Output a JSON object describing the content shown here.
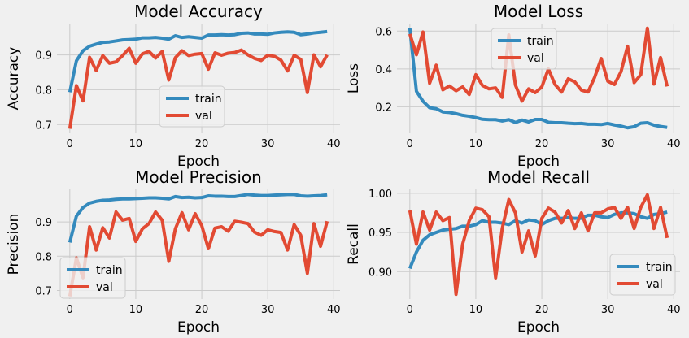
{
  "chart_data": [
    {
      "type": "line",
      "title": "Model Accuracy",
      "xlabel": "Epoch",
      "ylabel": "Accuracy",
      "xlim": [
        -1.95,
        40.95
      ],
      "ylim": [
        0.675,
        0.99
      ],
      "xticks": [
        0,
        10,
        20,
        30,
        40
      ],
      "yticks": [
        0.7,
        0.8,
        0.9
      ],
      "ytick_labels": [
        "0.7",
        "0.8",
        "0.9"
      ],
      "legend": "center-bottom",
      "grid": true,
      "x": [
        0,
        1,
        2,
        3,
        4,
        5,
        6,
        7,
        8,
        9,
        10,
        11,
        12,
        13,
        14,
        15,
        16,
        17,
        18,
        19,
        20,
        21,
        22,
        23,
        24,
        25,
        26,
        27,
        28,
        29,
        30,
        31,
        32,
        33,
        34,
        35,
        36,
        37,
        38,
        39
      ],
      "series": [
        {
          "name": "train",
          "color": "#348ABD",
          "values": [
            0.793,
            0.883,
            0.912,
            0.925,
            0.931,
            0.936,
            0.937,
            0.94,
            0.943,
            0.944,
            0.945,
            0.949,
            0.949,
            0.95,
            0.948,
            0.945,
            0.955,
            0.95,
            0.952,
            0.95,
            0.948,
            0.957,
            0.957,
            0.958,
            0.957,
            0.958,
            0.962,
            0.963,
            0.96,
            0.96,
            0.959,
            0.963,
            0.965,
            0.966,
            0.965,
            0.958,
            0.96,
            0.963,
            0.965,
            0.967
          ]
        },
        {
          "name": "val",
          "color": "#E24A33",
          "values": [
            0.688,
            0.812,
            0.768,
            0.893,
            0.855,
            0.898,
            0.876,
            0.88,
            0.898,
            0.919,
            0.876,
            0.903,
            0.91,
            0.891,
            0.91,
            0.828,
            0.892,
            0.912,
            0.898,
            0.902,
            0.904,
            0.859,
            0.906,
            0.899,
            0.905,
            0.907,
            0.914,
            0.9,
            0.89,
            0.884,
            0.899,
            0.896,
            0.885,
            0.854,
            0.899,
            0.887,
            0.792,
            0.9,
            0.866,
            0.9
          ]
        }
      ]
    },
    {
      "type": "line",
      "title": "Model Loss",
      "xlabel": "Epoch",
      "ylabel": "Loss",
      "xlim": [
        -1.95,
        40.95
      ],
      "ylim": [
        0.06,
        0.64
      ],
      "xticks": [
        0,
        10,
        20,
        30,
        40
      ],
      "yticks": [
        0.2,
        0.4,
        0.6
      ],
      "ytick_labels": [
        "0.2",
        "0.4",
        "0.6"
      ],
      "legend": "upper-center",
      "grid": true,
      "x": [
        0,
        1,
        2,
        3,
        4,
        5,
        6,
        7,
        8,
        9,
        10,
        11,
        12,
        13,
        14,
        15,
        16,
        17,
        18,
        19,
        20,
        21,
        22,
        23,
        24,
        25,
        26,
        27,
        28,
        29,
        30,
        31,
        32,
        33,
        34,
        35,
        36,
        37,
        38,
        39
      ],
      "series": [
        {
          "name": "train",
          "color": "#348ABD",
          "values": [
            0.615,
            0.282,
            0.229,
            0.195,
            0.19,
            0.173,
            0.17,
            0.164,
            0.155,
            0.15,
            0.143,
            0.134,
            0.132,
            0.132,
            0.125,
            0.132,
            0.117,
            0.13,
            0.12,
            0.133,
            0.133,
            0.118,
            0.116,
            0.116,
            0.113,
            0.111,
            0.112,
            0.108,
            0.108,
            0.106,
            0.112,
            0.104,
            0.098,
            0.089,
            0.095,
            0.113,
            0.116,
            0.103,
            0.096,
            0.091
          ]
        },
        {
          "name": "val",
          "color": "#E24A33",
          "values": [
            0.585,
            0.475,
            0.595,
            0.325,
            0.42,
            0.29,
            0.31,
            0.285,
            0.305,
            0.265,
            0.37,
            0.313,
            0.295,
            0.3,
            0.25,
            0.58,
            0.315,
            0.23,
            0.295,
            0.275,
            0.305,
            0.4,
            0.318,
            0.278,
            0.348,
            0.332,
            0.288,
            0.278,
            0.355,
            0.455,
            0.335,
            0.318,
            0.385,
            0.52,
            0.328,
            0.37,
            0.615,
            0.32,
            0.46,
            0.308
          ]
        }
      ]
    },
    {
      "type": "line",
      "title": "Model Precision",
      "xlabel": "Epoch",
      "ylabel": "Precision",
      "xlim": [
        -1.95,
        40.95
      ],
      "ylim": [
        0.675,
        0.995
      ],
      "xticks": [
        0,
        10,
        20,
        30,
        40
      ],
      "yticks": [
        0.7,
        0.8,
        0.9
      ],
      "ytick_labels": [
        "0.7",
        "0.8",
        "0.9"
      ],
      "legend": "lower-left",
      "grid": true,
      "x": [
        0,
        1,
        2,
        3,
        4,
        5,
        6,
        7,
        8,
        9,
        10,
        11,
        12,
        13,
        14,
        15,
        16,
        17,
        18,
        19,
        20,
        21,
        22,
        23,
        24,
        25,
        26,
        27,
        28,
        29,
        30,
        31,
        32,
        33,
        34,
        35,
        36,
        37,
        38,
        39
      ],
      "series": [
        {
          "name": "train",
          "color": "#348ABD",
          "values": [
            0.84,
            0.917,
            0.942,
            0.955,
            0.96,
            0.963,
            0.964,
            0.966,
            0.967,
            0.967,
            0.968,
            0.969,
            0.97,
            0.97,
            0.969,
            0.967,
            0.974,
            0.971,
            0.972,
            0.97,
            0.971,
            0.976,
            0.975,
            0.975,
            0.974,
            0.974,
            0.977,
            0.98,
            0.978,
            0.977,
            0.977,
            0.978,
            0.979,
            0.98,
            0.98,
            0.976,
            0.975,
            0.976,
            0.977,
            0.979
          ]
        },
        {
          "name": "val",
          "color": "#E24A33",
          "values": [
            0.683,
            0.795,
            0.737,
            0.886,
            0.818,
            0.883,
            0.853,
            0.929,
            0.905,
            0.91,
            0.843,
            0.88,
            0.895,
            0.929,
            0.905,
            0.785,
            0.88,
            0.927,
            0.877,
            0.924,
            0.889,
            0.822,
            0.882,
            0.886,
            0.873,
            0.902,
            0.899,
            0.895,
            0.87,
            0.861,
            0.877,
            0.872,
            0.869,
            0.818,
            0.892,
            0.861,
            0.75,
            0.895,
            0.829,
            0.902
          ]
        }
      ]
    },
    {
      "type": "line",
      "title": "Model Recall",
      "xlabel": "Epoch",
      "ylabel": "Recall",
      "xlim": [
        -1.95,
        40.95
      ],
      "ylim": [
        0.865,
        1.005
      ],
      "xticks": [
        0,
        10,
        20,
        30,
        40
      ],
      "yticks": [
        0.9,
        0.95,
        1.0
      ],
      "ytick_labels": [
        "0.90",
        "0.95",
        "1.00"
      ],
      "legend": "lower-right",
      "grid": true,
      "x": [
        0,
        1,
        2,
        3,
        4,
        5,
        6,
        7,
        8,
        9,
        10,
        11,
        12,
        13,
        14,
        15,
        16,
        17,
        18,
        19,
        20,
        21,
        22,
        23,
        24,
        25,
        26,
        27,
        28,
        29,
        30,
        31,
        32,
        33,
        34,
        35,
        36,
        37,
        38,
        39
      ],
      "series": [
        {
          "name": "train",
          "color": "#348ABD",
          "values": [
            0.904,
            0.925,
            0.94,
            0.947,
            0.95,
            0.953,
            0.954,
            0.955,
            0.958,
            0.958,
            0.96,
            0.965,
            0.963,
            0.963,
            0.962,
            0.96,
            0.965,
            0.962,
            0.966,
            0.965,
            0.96,
            0.965,
            0.968,
            0.968,
            0.969,
            0.968,
            0.968,
            0.972,
            0.972,
            0.97,
            0.969,
            0.973,
            0.975,
            0.975,
            0.974,
            0.97,
            0.968,
            0.973,
            0.974,
            0.976
          ]
        },
        {
          "name": "val",
          "color": "#E24A33",
          "values": [
            0.978,
            0.935,
            0.976,
            0.953,
            0.976,
            0.965,
            0.969,
            0.871,
            0.935,
            0.965,
            0.981,
            0.979,
            0.97,
            0.892,
            0.955,
            0.992,
            0.975,
            0.925,
            0.952,
            0.92,
            0.968,
            0.981,
            0.976,
            0.962,
            0.978,
            0.955,
            0.975,
            0.952,
            0.975,
            0.975,
            0.98,
            0.982,
            0.968,
            0.982,
            0.955,
            0.982,
            0.998,
            0.955,
            0.982,
            0.943
          ]
        }
      ]
    }
  ]
}
